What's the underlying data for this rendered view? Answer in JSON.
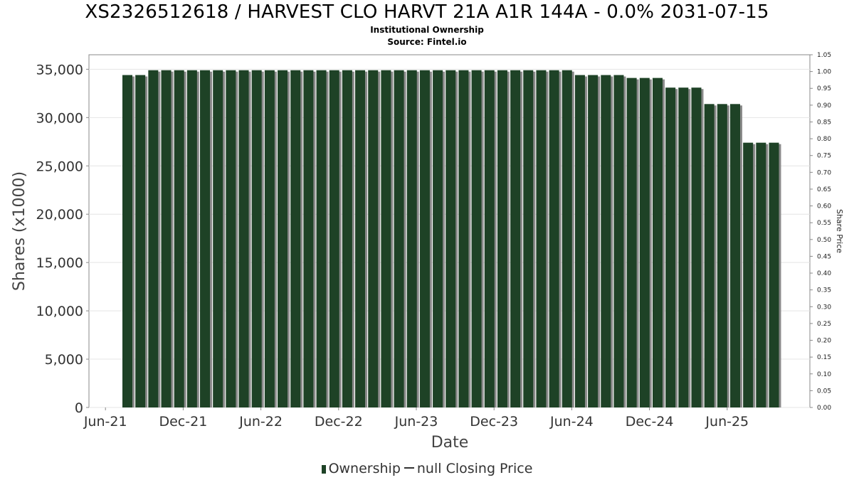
{
  "header": {
    "title": "XS2326512618 / HARVEST CLO HARVT 21A A1R 144A - 0.0% 2031-07-15",
    "subtitle": "Institutional Ownership",
    "source": "Source: Fintel.io"
  },
  "legend": {
    "ownership_label": "Ownership",
    "price_label": "null Closing Price"
  },
  "colors": {
    "bar": "#1e4226",
    "bar_shadow": "#8a8a8a",
    "grid": "#e4e4e4",
    "axis": "#888888"
  },
  "chart_data": {
    "type": "bar",
    "title": "XS2326512618 / HARVEST CLO HARVT 21A A1R 144A - 0.0% 2031-07-15",
    "xlabel": "Date",
    "ylabel": "Shares (x1000)",
    "y2label": "Share Price",
    "ylim": [
      0,
      36500
    ],
    "y2lim": [
      0,
      1.05
    ],
    "yticks": [
      "0",
      "5,000",
      "10,000",
      "15,000",
      "20,000",
      "25,000",
      "30,000",
      "35,000"
    ],
    "y2ticks": [
      "0.00",
      "0.05",
      "0.10",
      "0.15",
      "0.20",
      "0.25",
      "0.30",
      "0.35",
      "0.40",
      "0.45",
      "0.50",
      "0.55",
      "0.60",
      "0.65",
      "0.70",
      "0.75",
      "0.80",
      "0.85",
      "0.90",
      "0.95",
      "1.00",
      "1.05"
    ],
    "xticks": [
      "Jun-21",
      "Dec-21",
      "Jun-22",
      "Dec-22",
      "Jun-23",
      "Dec-23",
      "Jun-24",
      "Dec-24",
      "Jun-25"
    ],
    "grid": true,
    "legend_position": "bottom",
    "series": [
      {
        "name": "Ownership",
        "values": [
          34400,
          34400,
          34900,
          34900,
          34900,
          34900,
          34900,
          34900,
          34900,
          34900,
          34900,
          34900,
          34900,
          34900,
          34900,
          34900,
          34900,
          34900,
          34900,
          34900,
          34900,
          34900,
          34900,
          34900,
          34900,
          34900,
          34900,
          34900,
          34900,
          34900,
          34900,
          34900,
          34900,
          34900,
          34900,
          34400,
          34400,
          34400,
          34400,
          34100,
          34100,
          34100,
          33100,
          33100,
          33100,
          31400,
          31400,
          31400,
          27400,
          27400,
          27400
        ]
      }
    ]
  }
}
